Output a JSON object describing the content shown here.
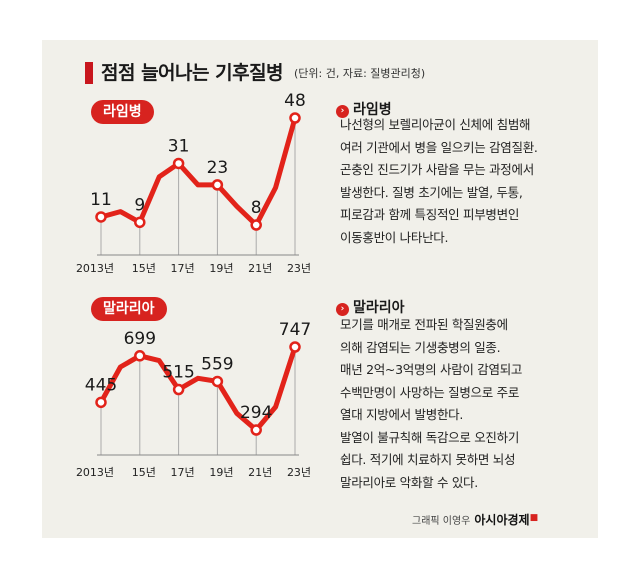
{
  "header": {
    "title": "점점 늘어나는 기후질병",
    "subtitle": "(단위: 건, 자료: 질병관리청)"
  },
  "lyme": {
    "tag": "라임병",
    "heading": "라임병",
    "desc": [
      "나선형의 보렐리아균이 신체에 침범해",
      "여러 기관에서 병을 일으키는 감염질환.",
      "곤충인 진드기가 사람을 무는 과정에서",
      "발생한다. 질병 초기에는 발열, 두통,",
      "피로감과 함께 특징적인 피부병변인",
      "이동홍반이 나타난다."
    ]
  },
  "malaria": {
    "tag": "말라리아",
    "heading": "말라리아",
    "desc": [
      "모기를 매개로 전파된 학질원충에",
      "의해 감염되는 기생충병의 일종.",
      "매년 2억~3억명의 사람이 감염되고",
      "수백만명이 사망하는 질병으로 주로",
      "열대 지방에서 발병한다.",
      "발열이 불규칙해 독감으로 오진하기",
      "쉽다. 적기에 치료하지 못하면 뇌성",
      "말라리아로 악화할 수 있다."
    ]
  },
  "credit": {
    "text": "그래픽 이영우",
    "brand": "아시아경제"
  },
  "colors": {
    "accent": "#d7231f",
    "line": "#e2231a",
    "panel": "#f1f0ea"
  },
  "chart_data": [
    {
      "type": "line",
      "name": "lyme",
      "x": [
        2013,
        2014,
        2015,
        2016,
        2017,
        2018,
        2019,
        2020,
        2021,
        2022,
        2023
      ],
      "values": [
        11,
        13,
        9,
        26,
        31,
        23,
        23,
        15,
        8,
        22,
        48
      ],
      "labeled_points": [
        {
          "x": 2013,
          "label": "11"
        },
        {
          "x": 2015,
          "label": "9"
        },
        {
          "x": 2017,
          "label": "31"
        },
        {
          "x": 2019,
          "label": "23"
        },
        {
          "x": 2021,
          "label": "8"
        },
        {
          "x": 2023,
          "label": "48"
        }
      ],
      "x_tick_labels": [
        "2013년",
        "15년",
        "17년",
        "19년",
        "21년",
        "23년"
      ],
      "ylim": [
        0,
        50
      ]
    },
    {
      "type": "line",
      "name": "malaria",
      "x": [
        2013,
        2014,
        2015,
        2016,
        2017,
        2018,
        2019,
        2020,
        2021,
        2022,
        2023
      ],
      "values": [
        445,
        638,
        699,
        673,
        515,
        576,
        559,
        385,
        294,
        420,
        747
      ],
      "labeled_points": [
        {
          "x": 2013,
          "label": "445"
        },
        {
          "x": 2015,
          "label": "699"
        },
        {
          "x": 2017,
          "label": "515"
        },
        {
          "x": 2019,
          "label": "559"
        },
        {
          "x": 2021,
          "label": "294"
        },
        {
          "x": 2023,
          "label": "747"
        }
      ],
      "x_tick_labels": [
        "2013년",
        "15년",
        "17년",
        "19년",
        "21년",
        "23년"
      ],
      "ylim": [
        0,
        800
      ]
    }
  ]
}
